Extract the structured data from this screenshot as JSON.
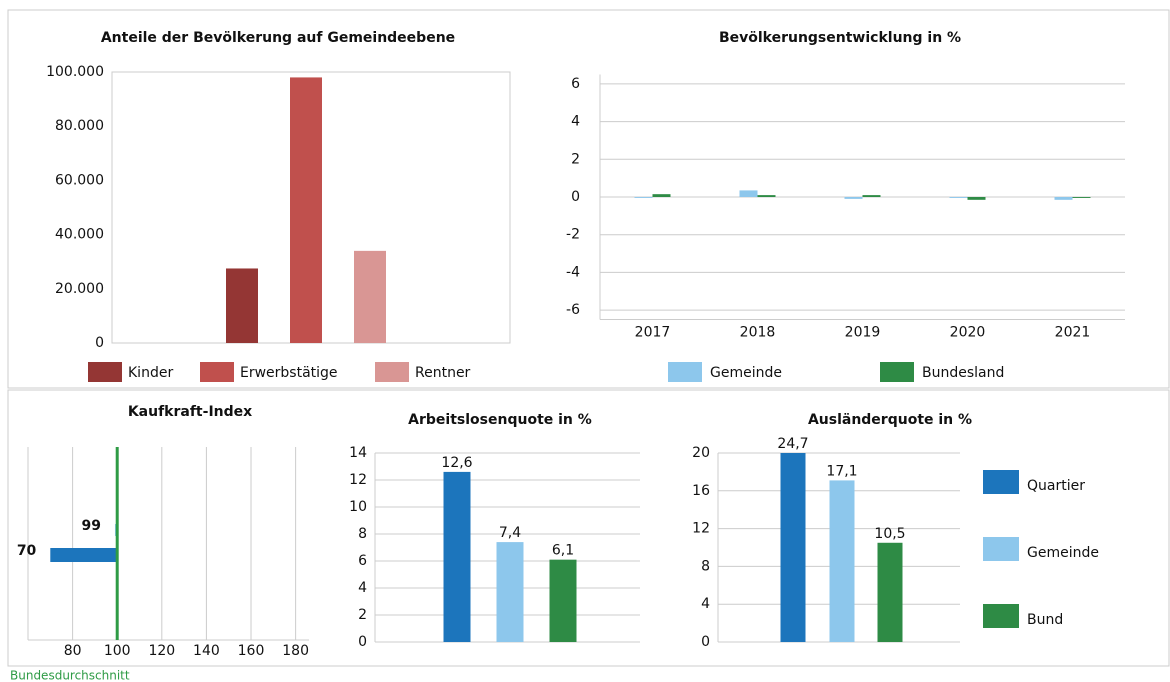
{
  "chart_data": [
    {
      "type": "bar",
      "title": "Anteile der Bevölkerung auf Gemeindeebene",
      "values": [
        27500,
        98000,
        34000
      ],
      "colors": [
        "#943634",
        "#c0504d",
        "#d99694"
      ],
      "legend": [
        "Kinder",
        "Erwerbstätige",
        "Rentner"
      ],
      "ylim": [
        0,
        100000
      ],
      "yticks": [
        0,
        {
          "value": 20000,
          "label": "20.000"
        },
        {
          "value": 40000,
          "label": "40.000"
        },
        {
          "value": 60000,
          "label": "60.000"
        },
        {
          "value": 80000,
          "label": "80.000"
        },
        {
          "value": 100000,
          "label": "100.000"
        }
      ],
      "grid": false
    },
    {
      "type": "grouped-bar",
      "title": "Bevölkerungsentwicklung in %",
      "categories": [
        "2017",
        "2018",
        "2019",
        "2020",
        "2021"
      ],
      "series": [
        {
          "name": "Gemeinde",
          "color": "#8dc7ec",
          "values": [
            -0.05,
            0.35,
            -0.1,
            -0.05,
            -0.15
          ]
        },
        {
          "name": "Bundesland",
          "color": "#2e8b45",
          "values": [
            0.15,
            0.1,
            0.1,
            -0.15,
            -0.05
          ]
        }
      ],
      "ylim": [
        -6.5,
        6.5
      ],
      "yticks": [
        -6,
        -4,
        -2,
        0,
        2,
        4,
        6
      ],
      "grid": true
    },
    {
      "type": "hbar",
      "title": "Kaufkraft-Index",
      "values": [
        99,
        70
      ],
      "colors": [
        "#8dc7ec",
        "#1c75bc"
      ],
      "reference": {
        "value": 100,
        "label": "Bundesdurchschnitt",
        "color": "#2e9b45"
      },
      "xlim": [
        60,
        186
      ],
      "xticks": [
        80,
        100,
        120,
        140,
        160,
        180
      ],
      "grid": true
    },
    {
      "type": "bar",
      "title": "Arbeitslosenquote in %",
      "values": [
        12.6,
        7.4,
        6.1
      ],
      "value_labels": [
        "12,6",
        "7,4",
        "6,1"
      ],
      "colors": [
        "#1c75bc",
        "#8dc7ec",
        "#2e8b45"
      ],
      "ylim": [
        0,
        14
      ],
      "yticks": [
        0,
        2,
        4,
        6,
        8,
        10,
        12,
        14
      ],
      "grid": true
    },
    {
      "type": "bar",
      "title": "Ausländerquote in %",
      "values": [
        24.7,
        17.1,
        10.5
      ],
      "value_labels": [
        "24,7",
        "17,1",
        "10,5"
      ],
      "colors": [
        "#1c75bc",
        "#8dc7ec",
        "#2e8b45"
      ],
      "legend": [
        "Quartier",
        "Gemeinde",
        "Bund"
      ],
      "ylim": [
        0,
        20
      ],
      "yticks": [
        0,
        4,
        8,
        12,
        16,
        20
      ],
      "grid": true
    }
  ]
}
